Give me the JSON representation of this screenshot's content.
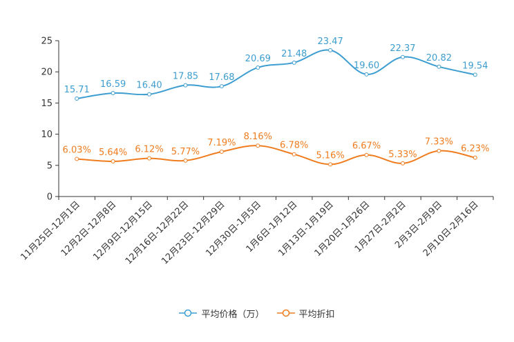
{
  "chart_data": {
    "type": "line",
    "title": "",
    "xlabel": "",
    "ylabel": "",
    "ylim": [
      0,
      25
    ],
    "yticks": [
      0,
      5,
      10,
      15,
      20,
      25
    ],
    "grid": false,
    "legend_position": "bottom",
    "categories": [
      "11月25日-12月1日",
      "12月2日-12月8日",
      "12月9日-12月15日",
      "12月16日-12月22日",
      "12月23日-12月29日",
      "12月30日-1月5日",
      "1月6日-1月12日",
      "1月13日-1月19日",
      "1月20日-1月26日",
      "1月27日-2月2日",
      "2月3日-2月9日",
      "2月10日-2月16日"
    ],
    "series": [
      {
        "name": "平均价格（万）",
        "color": "#3c9dd0",
        "values": [
          15.71,
          16.59,
          16.4,
          17.85,
          17.68,
          20.69,
          21.48,
          23.47,
          19.6,
          22.37,
          20.82,
          19.54
        ],
        "labels": [
          "15.71",
          "16.59",
          "16.40",
          "17.85",
          "17.68",
          "20.69",
          "21.48",
          "23.47",
          "19.60",
          "22.37",
          "20.82",
          "19.54"
        ]
      },
      {
        "name": "平均折扣",
        "color": "#f07c1e",
        "values": [
          6.03,
          5.64,
          6.12,
          5.77,
          7.19,
          8.16,
          6.78,
          5.16,
          6.67,
          5.33,
          7.33,
          6.23
        ],
        "labels": [
          "6.03%",
          "5.64%",
          "6.12%",
          "5.77%",
          "7.19%",
          "8.16%",
          "6.78%",
          "5.16%",
          "6.67%",
          "5.33%",
          "7.33%",
          "6.23%"
        ]
      }
    ]
  }
}
